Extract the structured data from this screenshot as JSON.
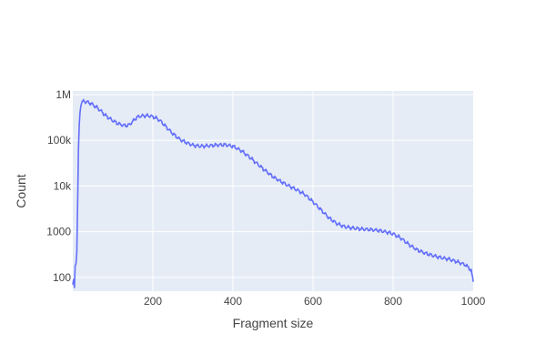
{
  "chart_data": {
    "type": "line",
    "title": "",
    "xlabel": "Fragment size",
    "ylabel": "Count",
    "xlim": [
      0,
      1000
    ],
    "ylim": [
      50,
      1200000
    ],
    "yscale": "log",
    "grid": true,
    "legend": "none",
    "colors": {
      "plot_bg": "#E5ECF6",
      "grid": "#FFFFFF",
      "line": "#636EFA",
      "text": "#444444"
    },
    "x_ticks": [
      {
        "value": 200,
        "label": "200"
      },
      {
        "value": 400,
        "label": "400"
      },
      {
        "value": 600,
        "label": "600"
      },
      {
        "value": 800,
        "label": "800"
      },
      {
        "value": 1000,
        "label": "1000"
      }
    ],
    "y_ticks": [
      {
        "value": 100,
        "label": "100"
      },
      {
        "value": 1000,
        "label": "1000"
      },
      {
        "value": 10000,
        "label": "10k"
      },
      {
        "value": 100000,
        "label": "100k"
      },
      {
        "value": 1000000,
        "label": "1M"
      }
    ],
    "series": [
      {
        "values_x": [
          0,
          2,
          4,
          6,
          8,
          10,
          12,
          14,
          16,
          18,
          20,
          22,
          25,
          28,
          30,
          35,
          40,
          45,
          50,
          55,
          60,
          65,
          70,
          75,
          80,
          90,
          100,
          110,
          120,
          130,
          140,
          150,
          160,
          170,
          180,
          190,
          200,
          210,
          220,
          230,
          240,
          250,
          260,
          270,
          280,
          300,
          320,
          340,
          360,
          380,
          400,
          420,
          440,
          460,
          480,
          500,
          520,
          540,
          560,
          580,
          600,
          620,
          640,
          660,
          680,
          700,
          720,
          740,
          760,
          780,
          800,
          820,
          840,
          860,
          880,
          900,
          920,
          940,
          960,
          980,
          990,
          995,
          1000
        ],
        "values_y": [
          70,
          90,
          60,
          180,
          200,
          350,
          4000,
          60000,
          200000,
          400000,
          550000,
          650000,
          700000,
          720000,
          700000,
          690000,
          670000,
          640000,
          600000,
          560000,
          520000,
          480000,
          440000,
          400000,
          360000,
          310000,
          270000,
          240000,
          220000,
          210000,
          215000,
          260000,
          320000,
          340000,
          345000,
          345000,
          330000,
          300000,
          260000,
          210000,
          170000,
          140000,
          118000,
          102000,
          92000,
          78000,
          74000,
          76000,
          79000,
          80000,
          74000,
          60000,
          44000,
          31000,
          22000,
          16000,
          12500,
          10000,
          8200,
          6500,
          4500,
          3000,
          2000,
          1500,
          1280,
          1200,
          1150,
          1120,
          1080,
          1000,
          900,
          720,
          520,
          400,
          340,
          300,
          270,
          250,
          220,
          190,
          160,
          140,
          80
        ]
      }
    ]
  }
}
